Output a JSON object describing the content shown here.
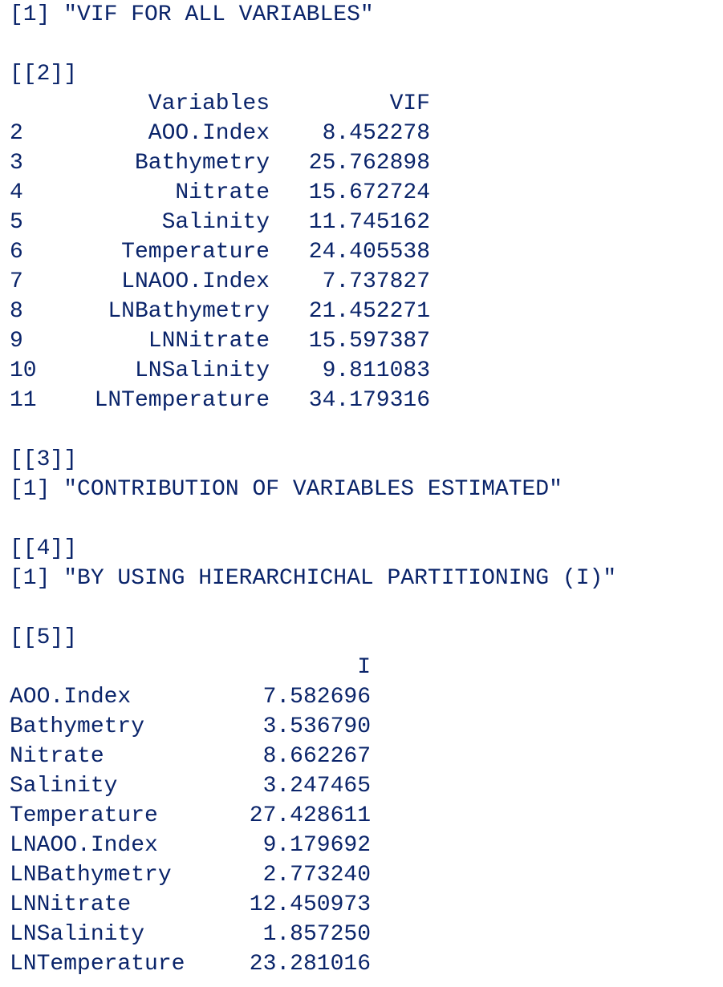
{
  "output": {
    "vif_title_prefix": "[1]",
    "vif_title": "\"VIF FOR ALL VARIABLES\"",
    "list2_marker": "[[2]]",
    "vif_table": {
      "headers": [
        "",
        "Variables",
        "VIF"
      ],
      "rows": [
        {
          "idx": "2",
          "variable": "AOO.Index",
          "vif": "8.452278"
        },
        {
          "idx": "3",
          "variable": "Bathymetry",
          "vif": "25.762898"
        },
        {
          "idx": "4",
          "variable": "Nitrate",
          "vif": "15.672724"
        },
        {
          "idx": "5",
          "variable": "Salinity",
          "vif": "11.745162"
        },
        {
          "idx": "6",
          "variable": "Temperature",
          "vif": "24.405538"
        },
        {
          "idx": "7",
          "variable": "LNAOO.Index",
          "vif": "7.737827"
        },
        {
          "idx": "8",
          "variable": "LNBathymetry",
          "vif": "21.452271"
        },
        {
          "idx": "9",
          "variable": "LNNitrate",
          "vif": "15.597387"
        },
        {
          "idx": "10",
          "variable": "LNSalinity",
          "vif": "9.811083"
        },
        {
          "idx": "11",
          "variable": "LNTemperature",
          "vif": "34.179316"
        }
      ]
    },
    "list3_marker": "[[3]]",
    "contrib_line": "[1] \"CONTRIBUTION OF VARIABLES ESTIMATED\"",
    "list4_marker": "[[4]]",
    "hp_line": "[1] \"BY USING HIERARCHICHAL PARTITIONING (I)\"",
    "list5_marker": "[[5]]",
    "i_table": {
      "header": "I",
      "rows": [
        {
          "name": "AOO.Index",
          "value": "7.582696"
        },
        {
          "name": "Bathymetry",
          "value": "3.536790"
        },
        {
          "name": "Nitrate",
          "value": "8.662267"
        },
        {
          "name": "Salinity",
          "value": "3.247465"
        },
        {
          "name": "Temperature",
          "value": "27.428611"
        },
        {
          "name": "LNAOO.Index",
          "value": "9.179692"
        },
        {
          "name": "LNBathymetry",
          "value": "2.773240"
        },
        {
          "name": "LNNitrate",
          "value": "12.450973"
        },
        {
          "name": "LNSalinity",
          "value": "1.857250"
        },
        {
          "name": "LNTemperature",
          "value": "23.281016"
        }
      ]
    }
  },
  "colors": {
    "text": "#0a246a",
    "background": "#ffffff"
  }
}
